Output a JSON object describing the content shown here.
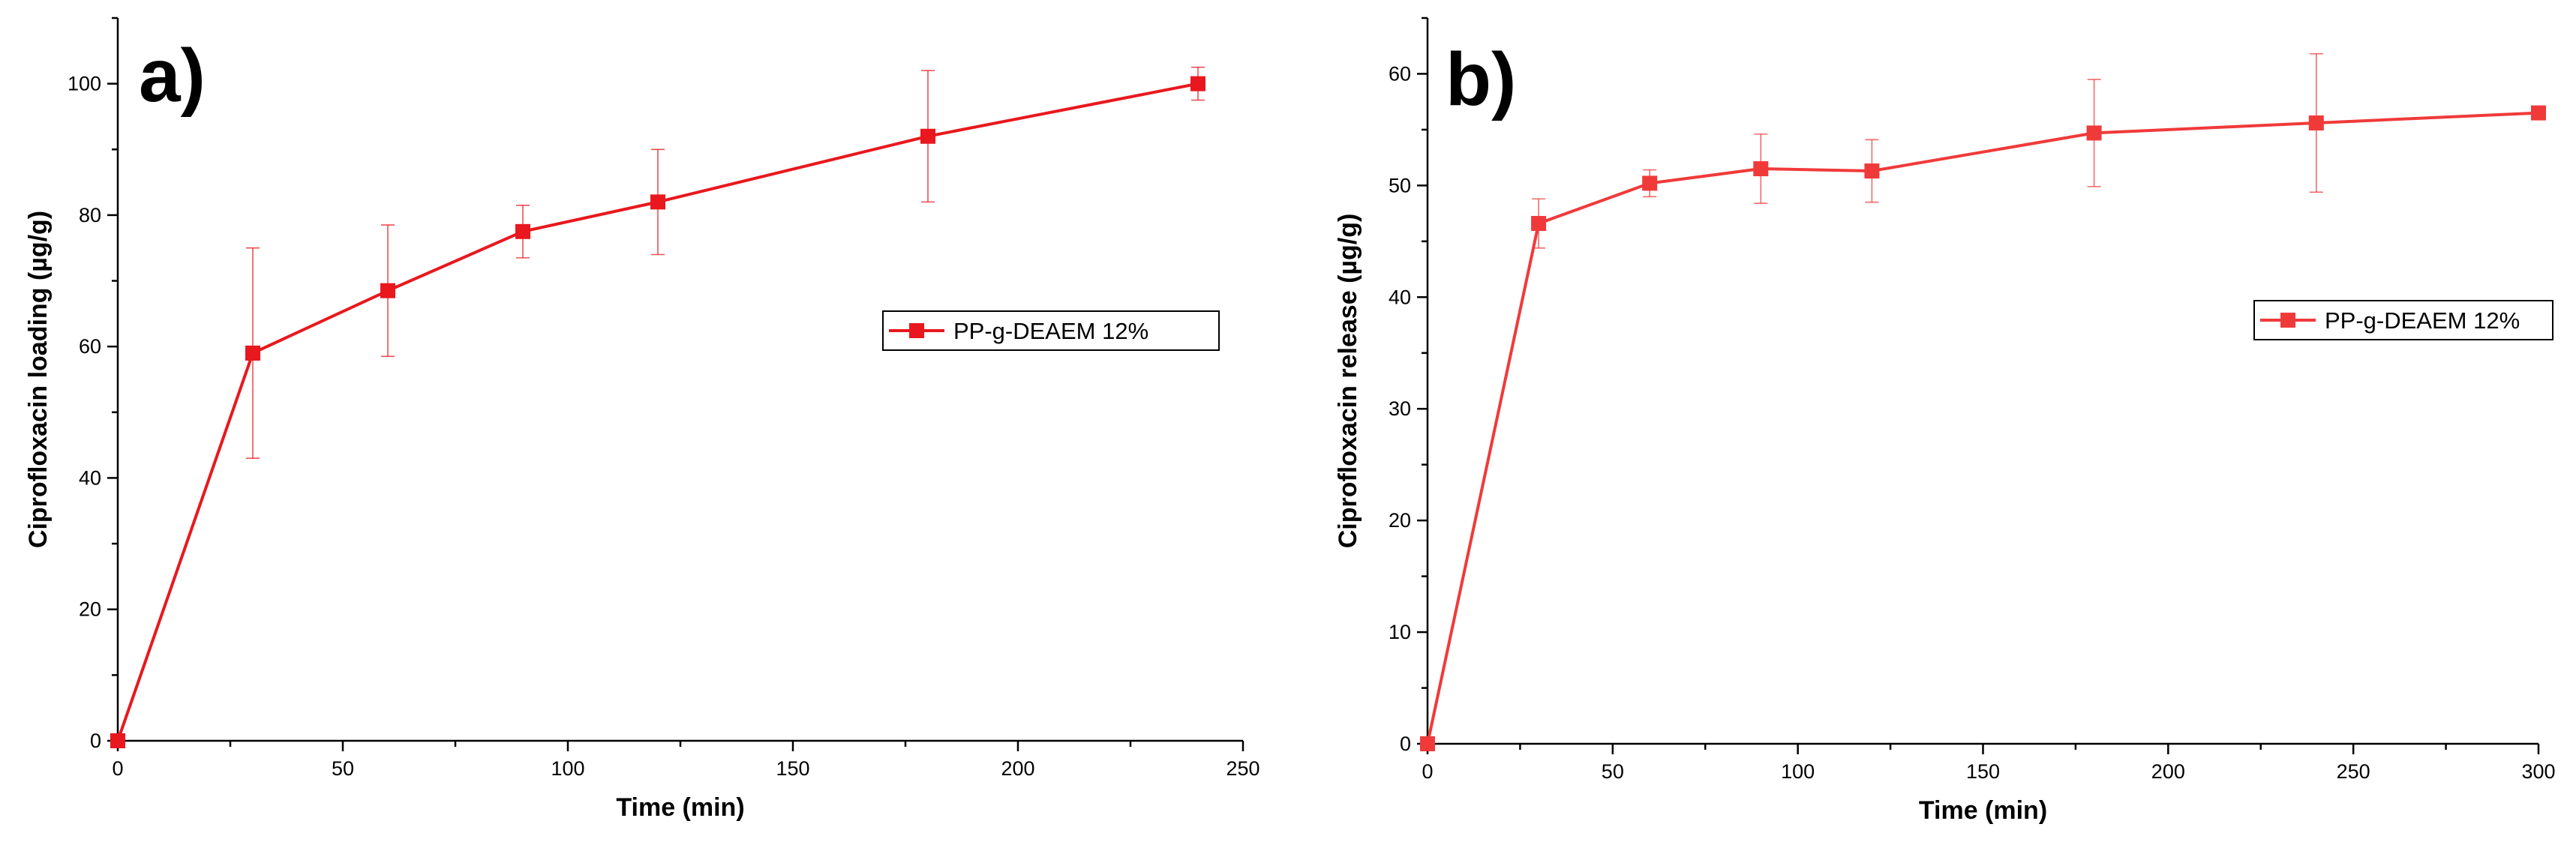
{
  "chart_data": [
    {
      "type": "line",
      "panel_label": "a)",
      "xlabel": "Time (min)",
      "ylabel": "Ciprofloxacin loading (µg/g)",
      "xlim": [
        0,
        250
      ],
      "ylim": [
        0,
        110
      ],
      "xticks": [
        0,
        50,
        100,
        150,
        200,
        250
      ],
      "yticks": [
        0,
        20,
        40,
        60,
        80,
        100
      ],
      "legend_position": "middle-right",
      "color": "#e8181e",
      "series": [
        {
          "name": "PP-g-DEAEM 12%",
          "x": [
            0,
            30,
            60,
            90,
            120,
            180,
            240
          ],
          "y": [
            0,
            59,
            68.5,
            77.5,
            82,
            92,
            100
          ],
          "error": [
            0,
            16,
            10,
            4,
            8,
            10,
            2.5
          ]
        }
      ]
    },
    {
      "type": "line",
      "panel_label": "b)",
      "xlabel": "Time (min)",
      "ylabel": "Ciprofloxacin release (µg/g)",
      "xlim": [
        0,
        300
      ],
      "ylim": [
        0,
        65
      ],
      "xticks": [
        0,
        50,
        100,
        150,
        200,
        250,
        300
      ],
      "yticks": [
        0,
        10,
        20,
        30,
        40,
        50,
        60
      ],
      "legend_position": "middle-right",
      "color": "#f03a3a",
      "series": [
        {
          "name": "PP-g-DEAEM 12%",
          "x": [
            0,
            30,
            60,
            90,
            120,
            180,
            240,
            300
          ],
          "y": [
            0,
            46.6,
            50.2,
            51.5,
            51.3,
            54.7,
            55.6,
            56.5
          ],
          "error": [
            0,
            2.2,
            1.2,
            3.1,
            2.8,
            4.8,
            6.2,
            0
          ]
        }
      ]
    }
  ]
}
